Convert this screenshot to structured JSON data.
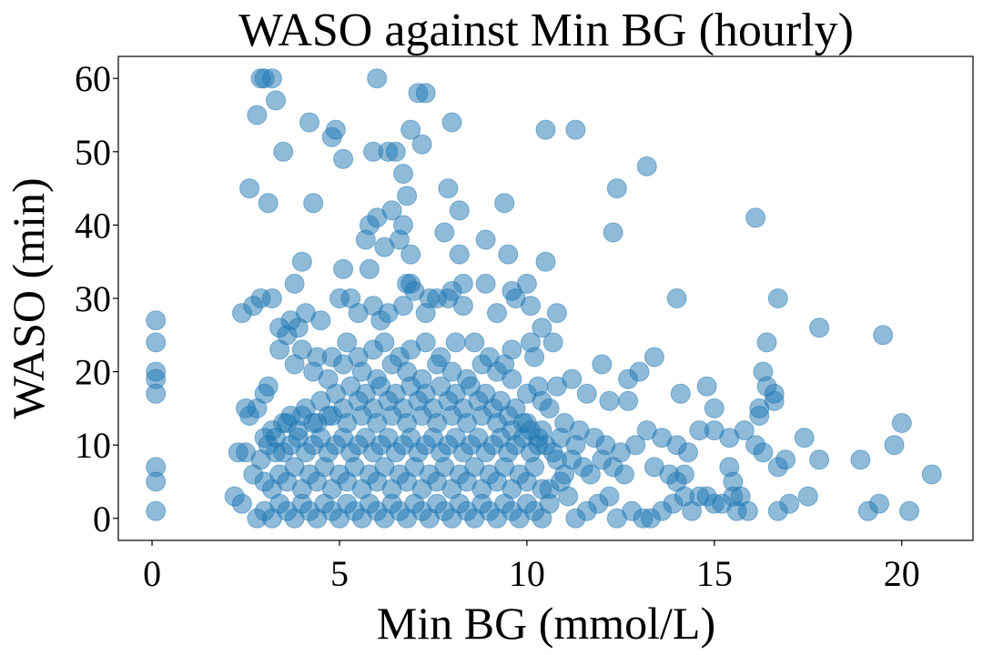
{
  "chart_data": {
    "type": "scatter",
    "title": "WASO against Min BG (hourly)",
    "xlabel": "Min BG (mmol/L)",
    "ylabel": "WASO (min)",
    "xlim": [
      -0.9,
      21.9
    ],
    "ylim": [
      -3,
      63
    ],
    "xticks": [
      0,
      5,
      10,
      15,
      20
    ],
    "yticks": [
      0,
      10,
      20,
      30,
      40,
      50,
      60
    ],
    "grid": false,
    "legend": "none",
    "marker_color": "#1f77b4",
    "marker_alpha": 0.5,
    "points": [
      [
        0.1,
        27
      ],
      [
        0.1,
        24
      ],
      [
        0.1,
        20
      ],
      [
        0.1,
        19
      ],
      [
        0.1,
        17
      ],
      [
        0.1,
        7
      ],
      [
        0.1,
        5
      ],
      [
        0.1,
        1
      ],
      [
        2.9,
        60
      ],
      [
        3.0,
        60
      ],
      [
        3.2,
        60
      ],
      [
        6.0,
        60
      ],
      [
        7.1,
        58
      ],
      [
        7.3,
        58
      ],
      [
        2.8,
        55
      ],
      [
        3.3,
        57
      ],
      [
        4.2,
        54
      ],
      [
        8.0,
        54
      ],
      [
        4.9,
        53
      ],
      [
        4.8,
        52
      ],
      [
        6.9,
        53
      ],
      [
        10.5,
        53
      ],
      [
        11.3,
        53
      ],
      [
        3.5,
        50
      ],
      [
        5.1,
        49
      ],
      [
        5.9,
        50
      ],
      [
        6.3,
        50
      ],
      [
        6.5,
        50
      ],
      [
        7.2,
        51
      ],
      [
        13.2,
        48
      ],
      [
        2.6,
        45
      ],
      [
        3.1,
        43
      ],
      [
        4.3,
        43
      ],
      [
        6.8,
        44
      ],
      [
        6.7,
        47
      ],
      [
        7.9,
        45
      ],
      [
        9.4,
        43
      ],
      [
        12.4,
        45
      ],
      [
        5.8,
        40
      ],
      [
        6.0,
        41
      ],
      [
        6.4,
        42
      ],
      [
        6.7,
        40
      ],
      [
        6.6,
        38
      ],
      [
        6.9,
        36
      ],
      [
        7.8,
        39
      ],
      [
        8.2,
        42
      ],
      [
        8.9,
        38
      ],
      [
        9.5,
        36
      ],
      [
        12.3,
        39
      ],
      [
        16.1,
        41
      ],
      [
        5.7,
        38
      ],
      [
        6.2,
        37
      ],
      [
        8.2,
        36
      ],
      [
        10.5,
        35
      ],
      [
        4.0,
        35
      ],
      [
        5.1,
        34
      ],
      [
        5.8,
        34
      ],
      [
        3.8,
        32
      ],
      [
        6.9,
        32
      ],
      [
        6.8,
        32
      ],
      [
        7.4,
        30
      ],
      [
        7.9,
        30
      ],
      [
        8.3,
        32
      ],
      [
        8.9,
        32
      ],
      [
        9.6,
        31
      ],
      [
        10.0,
        32
      ],
      [
        14.0,
        30
      ],
      [
        16.7,
        30
      ],
      [
        2.4,
        28
      ],
      [
        2.7,
        29
      ],
      [
        2.9,
        30
      ],
      [
        3.2,
        30
      ],
      [
        3.4,
        26
      ],
      [
        3.7,
        27
      ],
      [
        3.9,
        26
      ],
      [
        4.1,
        28
      ],
      [
        4.5,
        27
      ],
      [
        5.0,
        30
      ],
      [
        5.3,
        30
      ],
      [
        5.5,
        28
      ],
      [
        5.9,
        29
      ],
      [
        6.1,
        27
      ],
      [
        6.3,
        28
      ],
      [
        6.7,
        29
      ],
      [
        7.0,
        31
      ],
      [
        7.3,
        28
      ],
      [
        7.6,
        30
      ],
      [
        8.0,
        31
      ],
      [
        8.3,
        29
      ],
      [
        9.2,
        28
      ],
      [
        9.7,
        30
      ],
      [
        10.1,
        29
      ],
      [
        10.8,
        28
      ],
      [
        17.8,
        26
      ],
      [
        19.5,
        25
      ],
      [
        16.4,
        24
      ],
      [
        13.4,
        22
      ],
      [
        12.0,
        21
      ],
      [
        14.8,
        18
      ],
      [
        16.3,
        20
      ],
      [
        16.4,
        18
      ],
      [
        16.6,
        17
      ],
      [
        16.6,
        16
      ],
      [
        16.2,
        15
      ],
      [
        16.2,
        14
      ],
      [
        15.0,
        15
      ],
      [
        14.1,
        17
      ],
      [
        12.7,
        19
      ],
      [
        12.2,
        16
      ],
      [
        12.7,
        16
      ],
      [
        13.0,
        20
      ],
      [
        11.6,
        17
      ],
      [
        11.2,
        19
      ],
      [
        10.8,
        18
      ],
      [
        10.6,
        15
      ],
      [
        10.3,
        18
      ],
      [
        10.1,
        24
      ],
      [
        10.4,
        26
      ],
      [
        10.7,
        24
      ],
      [
        10.2,
        22
      ],
      [
        9.6,
        23
      ],
      [
        9.4,
        21
      ],
      [
        3.0,
        17
      ],
      [
        3.1,
        18
      ],
      [
        2.8,
        15
      ],
      [
        2.6,
        14
      ],
      [
        2.5,
        15
      ],
      [
        3.4,
        23
      ],
      [
        3.6,
        25
      ],
      [
        4.0,
        23
      ],
      [
        4.4,
        22
      ],
      [
        4.8,
        22
      ],
      [
        5.2,
        24
      ],
      [
        5.5,
        22
      ],
      [
        5.9,
        23
      ],
      [
        6.2,
        24
      ],
      [
        6.6,
        22
      ],
      [
        6.9,
        23
      ],
      [
        7.3,
        24
      ],
      [
        7.7,
        22
      ],
      [
        8.1,
        24
      ],
      [
        8.6,
        24
      ],
      [
        9.0,
        22
      ],
      [
        3.8,
        21
      ],
      [
        4.3,
        20
      ],
      [
        4.7,
        19
      ],
      [
        5.1,
        21
      ],
      [
        5.6,
        20
      ],
      [
        6.0,
        19
      ],
      [
        6.4,
        21
      ],
      [
        6.8,
        20
      ],
      [
        7.2,
        19
      ],
      [
        7.6,
        21
      ],
      [
        8.0,
        20
      ],
      [
        8.4,
        19
      ],
      [
        8.8,
        21
      ],
      [
        9.2,
        20
      ],
      [
        9.6,
        19
      ],
      [
        10.0,
        17
      ],
      [
        10.4,
        16
      ],
      [
        11.0,
        13
      ],
      [
        11.4,
        12
      ],
      [
        11.8,
        11
      ],
      [
        12.1,
        10
      ],
      [
        12.5,
        9
      ],
      [
        12.9,
        10
      ],
      [
        13.2,
        12
      ],
      [
        13.6,
        11
      ],
      [
        14.0,
        10
      ],
      [
        14.3,
        9
      ],
      [
        14.6,
        12
      ],
      [
        15.0,
        12
      ],
      [
        15.4,
        11
      ],
      [
        15.8,
        12
      ],
      [
        16.1,
        10
      ],
      [
        16.3,
        9
      ],
      [
        16.7,
        7
      ],
      [
        16.9,
        8
      ],
      [
        17.4,
        11
      ],
      [
        17.8,
        8
      ],
      [
        18.9,
        8
      ],
      [
        19.8,
        10
      ],
      [
        20.0,
        13
      ],
      [
        20.8,
        6
      ],
      [
        19.1,
        1
      ],
      [
        19.4,
        2
      ],
      [
        20.2,
        1
      ],
      [
        17.5,
        3
      ],
      [
        17.0,
        2
      ],
      [
        16.7,
        1
      ],
      [
        15.9,
        1
      ],
      [
        15.6,
        1
      ],
      [
        15.5,
        3
      ],
      [
        15.7,
        3
      ],
      [
        15.2,
        2
      ],
      [
        15.0,
        2
      ],
      [
        14.6,
        3
      ],
      [
        14.8,
        3
      ],
      [
        14.4,
        1
      ],
      [
        14.2,
        3
      ],
      [
        13.9,
        2
      ],
      [
        13.6,
        1
      ],
      [
        13.3,
        0
      ],
      [
        13.1,
        0
      ],
      [
        12.8,
        1
      ],
      [
        12.4,
        0
      ],
      [
        12.2,
        3
      ],
      [
        11.9,
        2
      ],
      [
        11.6,
        1
      ],
      [
        11.3,
        0
      ],
      [
        11.1,
        3
      ],
      [
        10.9,
        5
      ],
      [
        10.6,
        4
      ],
      [
        15.4,
        7
      ],
      [
        15.5,
        5
      ],
      [
        13.8,
        6
      ],
      [
        14.2,
        6
      ],
      [
        14.0,
        5
      ],
      [
        13.4,
        7
      ],
      [
        12.6,
        6
      ],
      [
        12.3,
        7
      ],
      [
        12.0,
        8
      ],
      [
        11.7,
        6
      ],
      [
        2.2,
        3
      ],
      [
        2.3,
        9
      ],
      [
        2.4,
        2
      ],
      [
        2.5,
        9
      ],
      [
        2.7,
        6
      ],
      [
        2.9,
        8
      ],
      [
        3.0,
        11
      ],
      [
        3.2,
        12
      ],
      [
        3.3,
        9
      ],
      [
        3.5,
        13
      ],
      [
        3.7,
        14
      ],
      [
        3.9,
        12
      ],
      [
        4.1,
        15
      ],
      [
        4.3,
        13
      ],
      [
        4.5,
        16
      ],
      [
        4.7,
        14
      ],
      [
        4.9,
        17
      ],
      [
        5.1,
        15
      ],
      [
        5.3,
        18
      ],
      [
        5.5,
        16
      ],
      [
        5.7,
        17
      ],
      [
        5.9,
        15
      ],
      [
        6.1,
        18
      ],
      [
        6.3,
        16
      ],
      [
        6.5,
        17
      ],
      [
        6.7,
        15
      ],
      [
        6.9,
        18
      ],
      [
        7.1,
        16
      ],
      [
        7.3,
        17
      ],
      [
        7.5,
        15
      ],
      [
        7.7,
        18
      ],
      [
        7.9,
        16
      ],
      [
        8.1,
        17
      ],
      [
        8.3,
        15
      ],
      [
        8.5,
        18
      ],
      [
        8.7,
        16
      ],
      [
        8.9,
        17
      ],
      [
        9.1,
        15
      ],
      [
        9.3,
        16
      ],
      [
        9.5,
        14
      ],
      [
        9.7,
        15
      ],
      [
        9.9,
        13
      ],
      [
        10.1,
        12
      ],
      [
        10.3,
        11
      ],
      [
        10.5,
        10
      ],
      [
        2.8,
        0
      ],
      [
        3.0,
        1
      ],
      [
        3.2,
        0
      ],
      [
        3.4,
        2
      ],
      [
        3.6,
        1
      ],
      [
        3.8,
        0
      ],
      [
        4.0,
        2
      ],
      [
        4.2,
        1
      ],
      [
        4.4,
        0
      ],
      [
        4.6,
        2
      ],
      [
        4.8,
        1
      ],
      [
        5.0,
        0
      ],
      [
        5.2,
        2
      ],
      [
        5.4,
        1
      ],
      [
        5.6,
        0
      ],
      [
        5.8,
        2
      ],
      [
        6.0,
        1
      ],
      [
        6.2,
        0
      ],
      [
        6.4,
        2
      ],
      [
        6.6,
        1
      ],
      [
        6.8,
        0
      ],
      [
        7.0,
        2
      ],
      [
        7.2,
        1
      ],
      [
        7.4,
        0
      ],
      [
        7.6,
        2
      ],
      [
        7.8,
        1
      ],
      [
        8.0,
        0
      ],
      [
        8.2,
        2
      ],
      [
        8.4,
        1
      ],
      [
        8.6,
        0
      ],
      [
        8.8,
        2
      ],
      [
        9.0,
        1
      ],
      [
        9.2,
        0
      ],
      [
        9.4,
        2
      ],
      [
        9.6,
        1
      ],
      [
        9.8,
        0
      ],
      [
        10.0,
        2
      ],
      [
        10.2,
        1
      ],
      [
        10.4,
        0
      ],
      [
        10.6,
        2
      ],
      [
        3.0,
        5
      ],
      [
        3.2,
        4
      ],
      [
        3.4,
        6
      ],
      [
        3.6,
        5
      ],
      [
        3.8,
        7
      ],
      [
        4.0,
        4
      ],
      [
        4.2,
        6
      ],
      [
        4.4,
        5
      ],
      [
        4.6,
        7
      ],
      [
        4.8,
        4
      ],
      [
        5.0,
        6
      ],
      [
        5.2,
        5
      ],
      [
        5.4,
        7
      ],
      [
        5.6,
        4
      ],
      [
        5.8,
        6
      ],
      [
        6.0,
        5
      ],
      [
        6.2,
        7
      ],
      [
        6.4,
        4
      ],
      [
        6.6,
        6
      ],
      [
        6.8,
        5
      ],
      [
        7.0,
        7
      ],
      [
        7.2,
        4
      ],
      [
        7.4,
        6
      ],
      [
        7.6,
        5
      ],
      [
        7.8,
        7
      ],
      [
        8.0,
        4
      ],
      [
        8.2,
        6
      ],
      [
        8.4,
        5
      ],
      [
        8.6,
        7
      ],
      [
        8.8,
        4
      ],
      [
        9.0,
        6
      ],
      [
        9.2,
        5
      ],
      [
        9.4,
        7
      ],
      [
        9.6,
        4
      ],
      [
        9.8,
        6
      ],
      [
        10.0,
        5
      ],
      [
        10.2,
        7
      ],
      [
        10.4,
        4
      ],
      [
        10.8,
        8
      ],
      [
        11.0,
        6
      ],
      [
        3.1,
        10
      ],
      [
        3.3,
        11
      ],
      [
        3.5,
        9
      ],
      [
        3.7,
        10
      ],
      [
        3.9,
        11
      ],
      [
        4.1,
        9
      ],
      [
        4.3,
        10
      ],
      [
        4.5,
        11
      ],
      [
        4.7,
        9
      ],
      [
        4.9,
        10
      ],
      [
        5.1,
        11
      ],
      [
        5.3,
        9
      ],
      [
        5.5,
        10
      ],
      [
        5.7,
        11
      ],
      [
        5.9,
        9
      ],
      [
        6.1,
        10
      ],
      [
        6.3,
        11
      ],
      [
        6.5,
        9
      ],
      [
        6.7,
        10
      ],
      [
        6.9,
        11
      ],
      [
        7.1,
        9
      ],
      [
        7.3,
        10
      ],
      [
        7.5,
        11
      ],
      [
        7.7,
        9
      ],
      [
        7.9,
        10
      ],
      [
        8.1,
        11
      ],
      [
        8.3,
        9
      ],
      [
        8.5,
        10
      ],
      [
        8.7,
        11
      ],
      [
        8.9,
        9
      ],
      [
        9.1,
        10
      ],
      [
        9.3,
        11
      ],
      [
        9.5,
        9
      ],
      [
        9.7,
        10
      ],
      [
        9.9,
        11
      ],
      [
        10.1,
        9
      ],
      [
        10.3,
        10
      ],
      [
        10.7,
        9
      ],
      [
        11.2,
        8
      ],
      [
        11.5,
        7
      ],
      [
        3.6,
        13
      ],
      [
        4.0,
        14
      ],
      [
        4.4,
        13
      ],
      [
        4.8,
        14
      ],
      [
        5.2,
        13
      ],
      [
        5.6,
        14
      ],
      [
        6.0,
        13
      ],
      [
        6.4,
        14
      ],
      [
        6.8,
        13
      ],
      [
        7.2,
        14
      ],
      [
        7.6,
        13
      ],
      [
        8.0,
        14
      ],
      [
        8.4,
        13
      ],
      [
        8.8,
        14
      ],
      [
        9.2,
        13
      ],
      [
        9.6,
        12
      ],
      [
        10.0,
        13
      ],
      [
        10.4,
        12
      ],
      [
        10.9,
        11
      ],
      [
        11.3,
        10
      ]
    ]
  }
}
